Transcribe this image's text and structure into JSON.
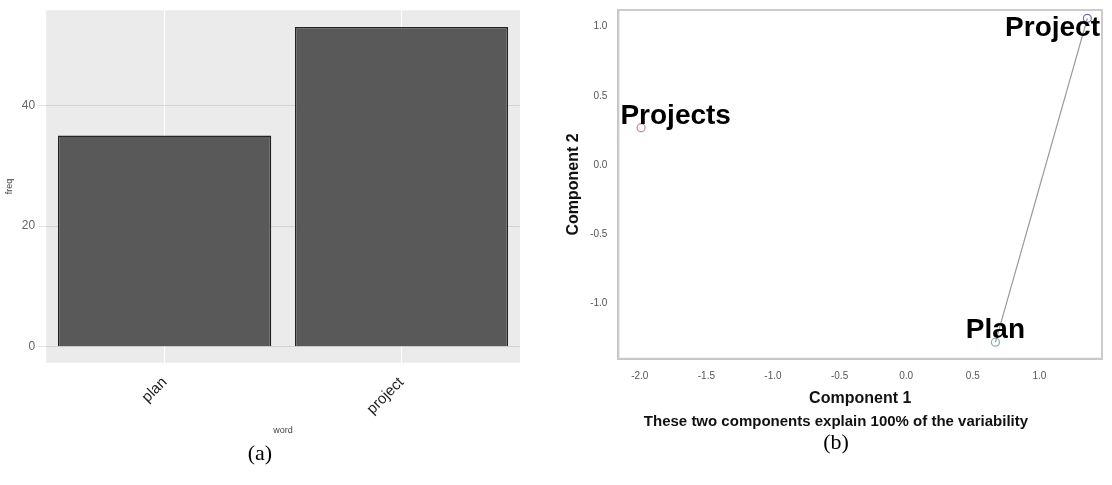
{
  "chart_data": [
    {
      "type": "bar",
      "categories": [
        "plan",
        "project"
      ],
      "values": [
        35,
        53
      ],
      "color": "#595959",
      "ylim": [
        -2.65,
        55.8
      ],
      "yticks": [
        0,
        20,
        40
      ],
      "xlabel": "word",
      "ylabel": "freq",
      "grid": true,
      "annotations": [
        "(a)"
      ]
    },
    {
      "type": "scatter",
      "xlabel": "Component 1",
      "ylabel": "Component 2",
      "xlim": [
        -2.16,
        1.47
      ],
      "ylim": [
        -1.4,
        1.12
      ],
      "xticks": [
        {
          "value": -2,
          "label": "-2.0"
        },
        {
          "value": -1.5,
          "label": "-1.5"
        },
        {
          "value": -1,
          "label": "-1.0"
        },
        {
          "value": -0.5,
          "label": "-0.5"
        },
        {
          "value": 0,
          "label": "0.0"
        },
        {
          "value": 0.5,
          "label": "0.5"
        },
        {
          "value": 1,
          "label": "1.0"
        }
      ],
      "yticks": [
        {
          "value": -1,
          "label": "-1.0"
        },
        {
          "value": -0.5,
          "label": "-0.5"
        },
        {
          "value": 0,
          "label": "0.0"
        },
        {
          "value": 0.5,
          "label": "0.5"
        },
        {
          "value": 1,
          "label": "1.0"
        }
      ],
      "grid": false,
      "marker": "circle",
      "series": [
        {
          "type": "line",
          "x": [
            0.67,
            1.36
          ],
          "values": [
            -1.28,
            1.06
          ],
          "color": "#999999",
          "marker": "none"
        },
        {
          "type": "scatter",
          "x": [
            -1.99,
            1.36,
            0.67
          ],
          "values": [
            0.27,
            1.06,
            -1.28
          ],
          "colors": [
            "#cc8888",
            "#6677aa",
            "#88aaaa"
          ]
        }
      ],
      "annotations": [
        {
          "text": "Projects",
          "x": -1.99,
          "y": 0.27
        },
        {
          "text": "Project",
          "x": 1.36,
          "y": 1.06
        },
        {
          "text": "Plan",
          "x": 0.67,
          "y": -1.28
        },
        "These two components explain 100% of the variability",
        "(b)"
      ]
    }
  ]
}
